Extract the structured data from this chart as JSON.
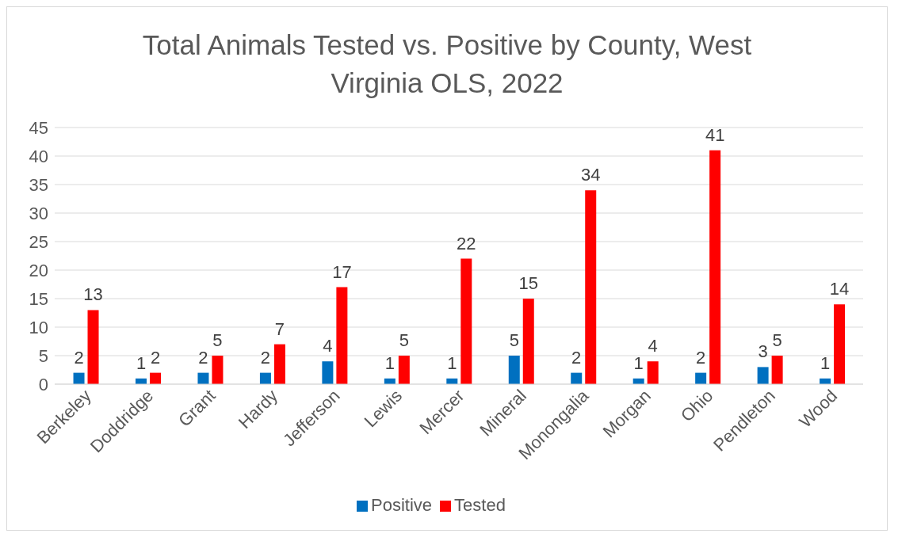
{
  "chart_data": {
    "type": "bar",
    "title": "Total Animals Tested vs. Positive by County, West Virginia OLS, 2022",
    "categories": [
      "Berkeley",
      "Doddridge",
      "Grant",
      "Hardy",
      "Jefferson",
      "Lewis",
      "Mercer",
      "Mineral",
      "Monongalia",
      "Morgan",
      "Ohio",
      "Pendleton",
      "Wood"
    ],
    "series": [
      {
        "name": "Positive",
        "color": "#0070c0",
        "values": [
          2,
          1,
          2,
          2,
          4,
          1,
          1,
          5,
          2,
          1,
          2,
          3,
          1
        ]
      },
      {
        "name": "Tested",
        "color": "#ff0000",
        "values": [
          13,
          2,
          5,
          7,
          17,
          5,
          22,
          15,
          34,
          4,
          41,
          5,
          14
        ]
      }
    ],
    "ylim": [
      0,
      45
    ],
    "yticks": [
      0,
      5,
      10,
      15,
      20,
      25,
      30,
      35,
      40,
      45
    ],
    "grid": "y",
    "legend": "bottom",
    "data_labels": true
  }
}
